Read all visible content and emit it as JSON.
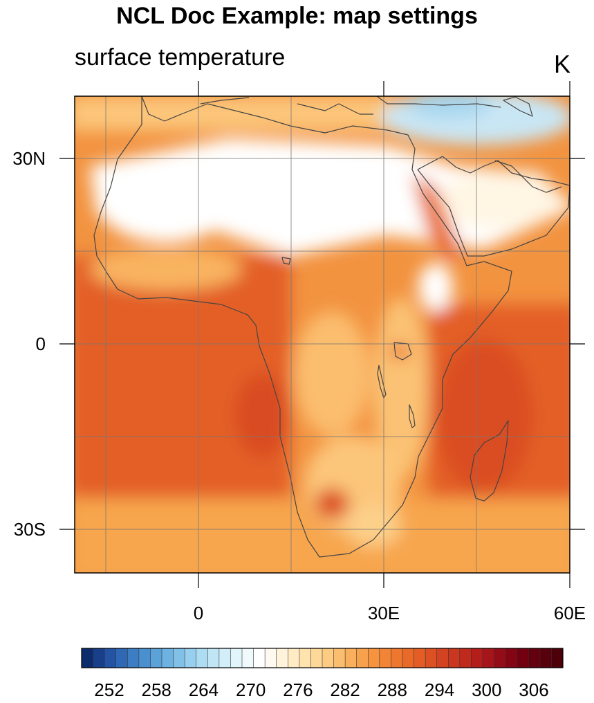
{
  "title": "NCL Doc Example: map settings",
  "subtitle_left": "surface temperature",
  "subtitle_right": "K",
  "map_data": {
    "lon_range": [
      -20,
      60
    ],
    "lat_range": [
      -37,
      40
    ],
    "grid_interval_deg": 15,
    "lon_ticks": [
      {
        "value": 0,
        "label": "0"
      },
      {
        "value": 30,
        "label": "30E"
      },
      {
        "value": 60,
        "label": "60E"
      }
    ],
    "lat_ticks": [
      {
        "value": 30,
        "label": "30N"
      },
      {
        "value": 0,
        "label": "0"
      },
      {
        "value": -30,
        "label": "30S"
      }
    ]
  },
  "colorbar": {
    "min": 249,
    "max": 312,
    "step": 1.5,
    "labels": [
      "252",
      "258",
      "264",
      "270",
      "276",
      "282",
      "288",
      "294",
      "300",
      "306"
    ],
    "colors": [
      "#0d2c6b",
      "#1a3f8a",
      "#2354a4",
      "#2f69b6",
      "#3c7dc4",
      "#4a90cf",
      "#5aa2d8",
      "#6db2e0",
      "#82c1e7",
      "#98cfee",
      "#addcf3",
      "#c0e6f6",
      "#d2eef8",
      "#e2f5fb",
      "#f0fafd",
      "#ffffff",
      "#fffaf0",
      "#fff3dc",
      "#ffecc5",
      "#ffe3ae",
      "#fed898",
      "#fdcb82",
      "#fbbd6e",
      "#f9af5c",
      "#f7a14c",
      "#f5933f",
      "#f28535",
      "#ee772d",
      "#e96a28",
      "#e35d25",
      "#dc5023",
      "#d44321",
      "#cb361f",
      "#c02a1d",
      "#b31e1b",
      "#a51519",
      "#940c17",
      "#830514",
      "#720011",
      "#64000e",
      "#58000c",
      "#4d000a"
    ]
  }
}
